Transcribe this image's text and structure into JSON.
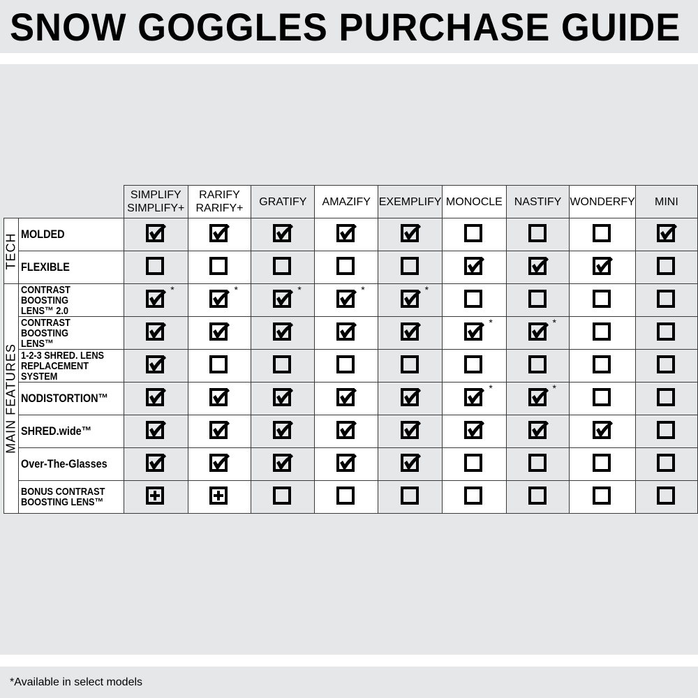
{
  "title": "SNOW GOGGLES PURCHASE GUIDE",
  "footnote": "*Available in select models",
  "columns": [
    "SIMPLIFY\nSIMPLIFY+",
    "RARIFY\nRARIFY+",
    "GRATIFY",
    "AMAZIFY",
    "EXEMPLIFY",
    "MONOCLE",
    "NASTIFY",
    "WONDERFY",
    "MINI"
  ],
  "groups": [
    {
      "label": "TECH",
      "rows": [
        {
          "label": "MOLDED",
          "values": [
            "check",
            "check",
            "check",
            "check",
            "check",
            "empty",
            "empty",
            "empty",
            "check"
          ]
        },
        {
          "label": "FLEXIBLE",
          "values": [
            "empty",
            "empty",
            "empty",
            "empty",
            "empty",
            "check",
            "check",
            "check",
            "empty"
          ]
        }
      ]
    },
    {
      "label": "MAIN FEATURES",
      "rows": [
        {
          "label": "CONTRAST BOOSTING\nLENS™ 2.0",
          "values": [
            "check*",
            "check*",
            "check*",
            "check*",
            "check*",
            "empty",
            "empty",
            "empty",
            "empty"
          ]
        },
        {
          "label": "CONTRAST BOOSTING\nLENS™",
          "values": [
            "check",
            "check",
            "check",
            "check",
            "check",
            "check*",
            "check*",
            "empty",
            "empty"
          ]
        },
        {
          "label": "1-2-3 SHRED. LENS\nREPLACEMENT SYSTEM",
          "values": [
            "check",
            "empty",
            "empty",
            "empty",
            "empty",
            "empty",
            "empty",
            "empty",
            "empty"
          ]
        },
        {
          "label": "NODISTORTION™",
          "values": [
            "check",
            "check",
            "check",
            "check",
            "check",
            "check*",
            "check*",
            "empty",
            "empty"
          ]
        },
        {
          "label": "SHRED.wide™",
          "values": [
            "check",
            "check",
            "check",
            "check",
            "check",
            "check",
            "check",
            "check",
            "empty"
          ]
        },
        {
          "label": "Over-The-Glasses",
          "values": [
            "check",
            "check",
            "check",
            "check",
            "check",
            "empty",
            "empty",
            "empty",
            "empty"
          ]
        },
        {
          "label": "BONUS CONTRAST\nBOOSTING LENS™",
          "values": [
            "plus",
            "plus",
            "empty",
            "empty",
            "empty",
            "empty",
            "empty",
            "empty",
            "empty"
          ]
        }
      ]
    }
  ],
  "colors": {
    "background": "#e6e7e8",
    "alt_column": "#e6e7e8",
    "mark": "#000000"
  }
}
